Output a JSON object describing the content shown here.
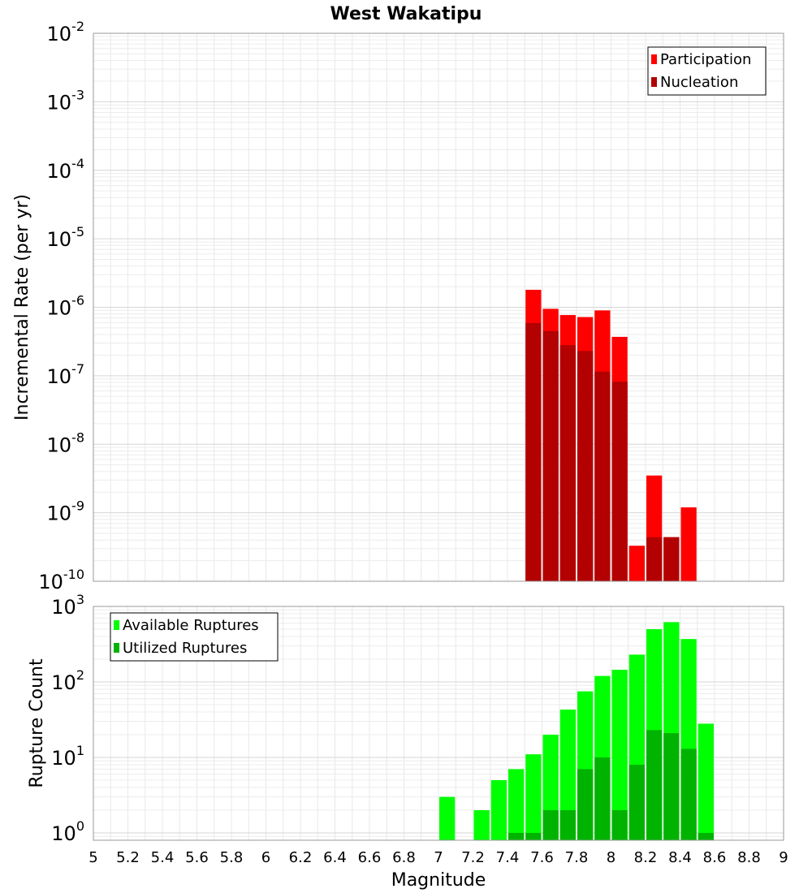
{
  "chart_data": [
    {
      "type": "bar",
      "title": "West Wakatipu",
      "xlabel": "",
      "ylabel": "Incremental Rate (per yr)",
      "yscale": "log",
      "ylim": [
        1e-10,
        0.01
      ],
      "xlim": [
        5,
        9
      ],
      "grid": true,
      "legend_position": "top-right",
      "bar_width": 0.1,
      "y_ticks": [
        {
          "value": 1e-10,
          "base": "10",
          "exp": "-10"
        },
        {
          "value": 1e-09,
          "base": "10",
          "exp": "-9"
        },
        {
          "value": 1e-08,
          "base": "10",
          "exp": "-8"
        },
        {
          "value": 1e-07,
          "base": "10",
          "exp": "-7"
        },
        {
          "value": 1e-06,
          "base": "10",
          "exp": "-6"
        },
        {
          "value": 1e-05,
          "base": "10",
          "exp": "-5"
        },
        {
          "value": 0.0001,
          "base": "10",
          "exp": "-4"
        },
        {
          "value": 0.001,
          "base": "10",
          "exp": "-3"
        },
        {
          "value": 0.01,
          "base": "10",
          "exp": "-2"
        }
      ],
      "series": [
        {
          "name": "Participation",
          "color": "#ff0000",
          "x": [
            7.55,
            7.65,
            7.75,
            7.85,
            7.95,
            8.05,
            8.15,
            8.25,
            8.35,
            8.45
          ],
          "values": [
            1.8e-06,
            9.5e-07,
            7.7e-07,
            7.2e-07,
            9e-07,
            3.7e-07,
            3.3e-10,
            3.5e-09,
            4.4e-10,
            1.2e-09
          ]
        },
        {
          "name": "Nucleation",
          "color": "#b30000",
          "x": [
            7.55,
            7.65,
            7.75,
            7.85,
            7.95,
            8.05,
            8.25,
            8.35
          ],
          "values": [
            5.9e-07,
            4.5e-07,
            2.8e-07,
            2.3e-07,
            1.15e-07,
            8.2e-08,
            4.4e-10,
            4.4e-10
          ]
        }
      ]
    },
    {
      "type": "bar",
      "title": "",
      "xlabel": "Magnitude",
      "ylabel": "Rupture Count",
      "yscale": "log",
      "ylim": [
        0.8,
        1000
      ],
      "xlim": [
        5,
        9
      ],
      "grid": true,
      "legend_position": "top-left",
      "bar_width": 0.1,
      "x_ticks": [
        "5",
        "5.2",
        "5.4",
        "5.6",
        "5.8",
        "6",
        "6.2",
        "6.4",
        "6.6",
        "6.8",
        "7",
        "7.2",
        "7.4",
        "7.6",
        "7.8",
        "8",
        "8.2",
        "8.4",
        "8.6",
        "8.8",
        "9"
      ],
      "y_ticks": [
        {
          "value": 1,
          "base": "10",
          "exp": "0"
        },
        {
          "value": 10,
          "base": "10",
          "exp": "1"
        },
        {
          "value": 100,
          "base": "10",
          "exp": "2"
        },
        {
          "value": 1000,
          "base": "10",
          "exp": "3"
        }
      ],
      "series": [
        {
          "name": "Available Ruptures",
          "color": "#00ff00",
          "x": [
            7.05,
            7.25,
            7.35,
            7.45,
            7.55,
            7.65,
            7.75,
            7.85,
            7.95,
            8.05,
            8.15,
            8.25,
            8.35,
            8.45,
            8.55
          ],
          "values": [
            3,
            2,
            5,
            7,
            11,
            20,
            43,
            75,
            120,
            145,
            230,
            500,
            620,
            370,
            28
          ]
        },
        {
          "name": "Utilized Ruptures",
          "color": "#00b300",
          "x": [
            7.45,
            7.55,
            7.65,
            7.75,
            7.85,
            7.95,
            8.05,
            8.15,
            8.25,
            8.35,
            8.45,
            8.55
          ],
          "values": [
            1,
            1,
            2,
            2,
            7,
            10,
            2,
            8,
            23,
            21,
            13,
            1
          ]
        }
      ]
    }
  ]
}
